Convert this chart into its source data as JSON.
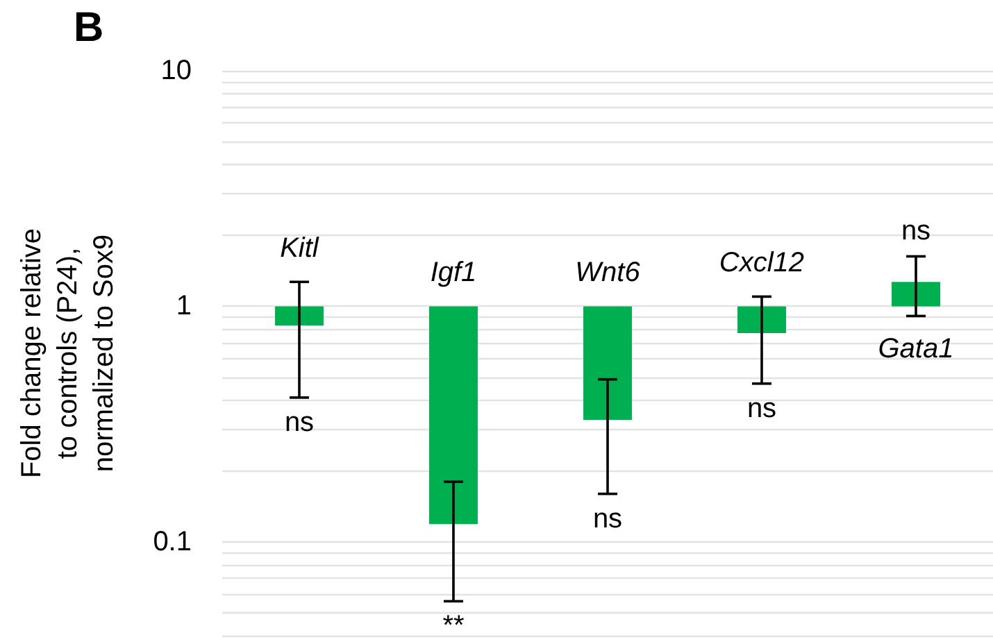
{
  "chart_data": {
    "type": "bar",
    "title": "B",
    "ylabel": "Fold change relative\nto controls (P24),\nnormalized to Sox9",
    "categories": [
      "Kitl",
      "Igf1",
      "Wnt6",
      "Cxcl12",
      "Gata1"
    ],
    "values": [
      -0.17,
      -0.881,
      -0.67,
      -0.23,
      0.27
    ],
    "base": [
      1,
      1,
      1,
      1,
      1
    ],
    "errors": [
      [
        0.41,
        1.27
      ],
      [
        0.056,
        0.18
      ],
      [
        0.16,
        0.49
      ],
      [
        0.47,
        1.1
      ],
      [
        0.91,
        1.63
      ]
    ],
    "color": "#00b050",
    "log": true,
    "ylim": [
      0.04,
      10
    ],
    "yticks": [
      {
        "value": 0.04,
        "label": null
      },
      {
        "value": 0.05,
        "label": null
      },
      {
        "value": 0.06,
        "label": null
      },
      {
        "value": 0.07,
        "label": null
      },
      {
        "value": 0.08,
        "label": null
      },
      {
        "value": 0.09,
        "label": null
      },
      0.1,
      {
        "value": 0.2,
        "label": null
      },
      {
        "value": 0.3,
        "label": null
      },
      {
        "value": 0.4,
        "label": null
      },
      {
        "value": 0.5,
        "label": null
      },
      {
        "value": 0.6,
        "label": null
      },
      {
        "value": 0.7,
        "label": null
      },
      {
        "value": 0.8,
        "label": null
      },
      {
        "value": 0.9,
        "label": null
      },
      1,
      {
        "value": 2,
        "label": null
      },
      {
        "value": 3,
        "label": null
      },
      {
        "value": 4,
        "label": null
      },
      {
        "value": 5,
        "label": null
      },
      {
        "value": 6,
        "label": null
      },
      {
        "value": 7,
        "label": null
      },
      {
        "value": 8,
        "label": null
      },
      {
        "value": 9,
        "label": null
      },
      10
    ],
    "grid": "y",
    "annotations": [
      "ns",
      "**",
      "ns",
      "ns",
      "ns"
    ]
  }
}
